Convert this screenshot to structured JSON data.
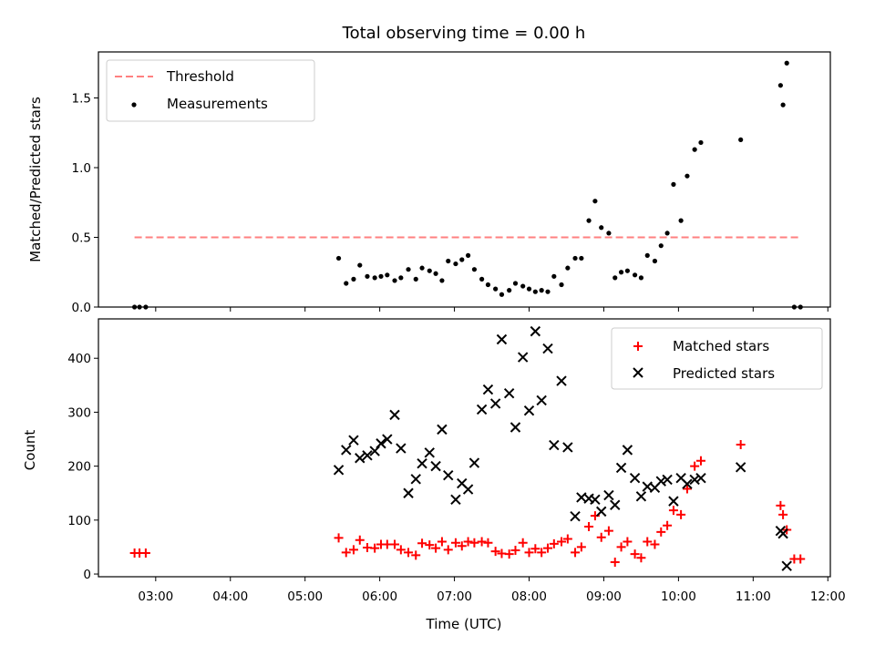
{
  "colors": {
    "threshold": "#ff8080",
    "measurements": "#000000",
    "matched": "#ff0000",
    "predicted": "#000000"
  },
  "chart_data": [
    {
      "type": "scatter",
      "title": "Total observing time = 0.00 h",
      "ylabel": "Matched/Predicted stars",
      "xlabel": "",
      "xlim": [
        "02:14",
        "12:02"
      ],
      "ylim": [
        0,
        1.83
      ],
      "grid": false,
      "legend_location": "top-left",
      "y_ticks": [
        "0.0",
        "0.5",
        "1.0",
        "1.5"
      ],
      "series": [
        {
          "name": "Threshold",
          "style": "dashed-line",
          "points": [
            [
              "02:43",
              0.5
            ],
            [
              "11:38",
              0.5
            ]
          ]
        },
        {
          "name": "Measurements",
          "style": "dots",
          "points": [
            [
              "02:43",
              0.0
            ],
            [
              "02:47",
              0.0
            ],
            [
              "02:52",
              0.0
            ],
            [
              "05:27",
              0.35
            ],
            [
              "05:33",
              0.17
            ],
            [
              "05:39",
              0.2
            ],
            [
              "05:44",
              0.3
            ],
            [
              "05:50",
              0.22
            ],
            [
              "05:56",
              0.21
            ],
            [
              "06:01",
              0.22
            ],
            [
              "06:06",
              0.23
            ],
            [
              "06:12",
              0.19
            ],
            [
              "06:17",
              0.21
            ],
            [
              "06:23",
              0.27
            ],
            [
              "06:29",
              0.2
            ],
            [
              "06:34",
              0.28
            ],
            [
              "06:40",
              0.26
            ],
            [
              "06:45",
              0.24
            ],
            [
              "06:50",
              0.19
            ],
            [
              "06:55",
              0.33
            ],
            [
              "07:01",
              0.31
            ],
            [
              "07:06",
              0.34
            ],
            [
              "07:11",
              0.37
            ],
            [
              "07:16",
              0.27
            ],
            [
              "07:22",
              0.2
            ],
            [
              "07:27",
              0.16
            ],
            [
              "07:33",
              0.13
            ],
            [
              "07:38",
              0.09
            ],
            [
              "07:44",
              0.12
            ],
            [
              "07:49",
              0.17
            ],
            [
              "07:55",
              0.15
            ],
            [
              "08:00",
              0.13
            ],
            [
              "08:05",
              0.11
            ],
            [
              "08:10",
              0.12
            ],
            [
              "08:15",
              0.11
            ],
            [
              "08:20",
              0.22
            ],
            [
              "08:26",
              0.16
            ],
            [
              "08:31",
              0.28
            ],
            [
              "08:37",
              0.35
            ],
            [
              "08:42",
              0.35
            ],
            [
              "08:48",
              0.62
            ],
            [
              "08:53",
              0.76
            ],
            [
              "08:58",
              0.57
            ],
            [
              "09:04",
              0.53
            ],
            [
              "09:09",
              0.21
            ],
            [
              "09:14",
              0.25
            ],
            [
              "09:19",
              0.26
            ],
            [
              "09:25",
              0.23
            ],
            [
              "09:30",
              0.21
            ],
            [
              "09:35",
              0.37
            ],
            [
              "09:41",
              0.33
            ],
            [
              "09:46",
              0.44
            ],
            [
              "09:51",
              0.53
            ],
            [
              "09:56",
              0.88
            ],
            [
              "10:02",
              0.62
            ],
            [
              "10:07",
              0.94
            ],
            [
              "10:13",
              1.13
            ],
            [
              "10:18",
              1.18
            ],
            [
              "10:50",
              1.2
            ],
            [
              "11:22",
              1.59
            ],
            [
              "11:24",
              1.45
            ],
            [
              "11:27",
              1.75
            ],
            [
              "11:33",
              0.0
            ],
            [
              "11:38",
              0.0
            ]
          ]
        }
      ]
    },
    {
      "type": "scatter",
      "title": "",
      "xlabel": "Time (UTC)",
      "ylabel": "Count",
      "xlim": [
        "02:14",
        "12:02"
      ],
      "ylim": [
        -5,
        473
      ],
      "grid": false,
      "legend_location": "top-right",
      "y_ticks": [
        "0",
        "100",
        "200",
        "300",
        "400"
      ],
      "x_ticks": [
        "03:00",
        "04:00",
        "05:00",
        "06:00",
        "07:00",
        "08:00",
        "09:00",
        "10:00",
        "11:00",
        "12:00"
      ],
      "series": [
        {
          "name": "Matched stars",
          "marker": "plus",
          "points": [
            [
              "02:43",
              39
            ],
            [
              "02:47",
              39
            ],
            [
              "02:52",
              39
            ],
            [
              "05:27",
              67
            ],
            [
              "05:33",
              40
            ],
            [
              "05:39",
              45
            ],
            [
              "05:44",
              63
            ],
            [
              "05:50",
              49
            ],
            [
              "05:56",
              48
            ],
            [
              "06:01",
              55
            ],
            [
              "06:06",
              55
            ],
            [
              "06:12",
              55
            ],
            [
              "06:17",
              45
            ],
            [
              "06:23",
              40
            ],
            [
              "06:29",
              35
            ],
            [
              "06:34",
              57
            ],
            [
              "06:40",
              54
            ],
            [
              "06:45",
              48
            ],
            [
              "06:50",
              60
            ],
            [
              "06:55",
              45
            ],
            [
              "07:01",
              58
            ],
            [
              "07:06",
              52
            ],
            [
              "07:11",
              60
            ],
            [
              "07:16",
              58
            ],
            [
              "07:22",
              60
            ],
            [
              "07:27",
              58
            ],
            [
              "07:33",
              42
            ],
            [
              "07:38",
              38
            ],
            [
              "07:44",
              37
            ],
            [
              "07:49",
              44
            ],
            [
              "07:55",
              58
            ],
            [
              "08:00",
              40
            ],
            [
              "08:05",
              47
            ],
            [
              "08:10",
              40
            ],
            [
              "08:15",
              48
            ],
            [
              "08:20",
              56
            ],
            [
              "08:26",
              60
            ],
            [
              "08:31",
              65
            ],
            [
              "08:37",
              40
            ],
            [
              "08:42",
              50
            ],
            [
              "08:48",
              88
            ],
            [
              "08:53",
              108
            ],
            [
              "08:58",
              68
            ],
            [
              "09:04",
              80
            ],
            [
              "09:09",
              22
            ],
            [
              "09:14",
              50
            ],
            [
              "09:19",
              60
            ],
            [
              "09:25",
              37
            ],
            [
              "09:30",
              30
            ],
            [
              "09:35",
              60
            ],
            [
              "09:41",
              55
            ],
            [
              "09:46",
              78
            ],
            [
              "09:51",
              90
            ],
            [
              "09:56",
              118
            ],
            [
              "10:02",
              110
            ],
            [
              "10:07",
              158
            ],
            [
              "10:13",
              200
            ],
            [
              "10:18",
              210
            ],
            [
              "10:50",
              240
            ],
            [
              "11:22",
              127
            ],
            [
              "11:24",
              110
            ],
            [
              "11:27",
              82
            ],
            [
              "11:33",
              28
            ],
            [
              "11:38",
              28
            ]
          ]
        },
        {
          "name": "Predicted stars",
          "marker": "x",
          "points": [
            [
              "05:27",
              193
            ],
            [
              "05:33",
              230
            ],
            [
              "05:39",
              248
            ],
            [
              "05:44",
              215
            ],
            [
              "05:50",
              220
            ],
            [
              "05:56",
              228
            ],
            [
              "06:01",
              242
            ],
            [
              "06:06",
              250
            ],
            [
              "06:12",
              295
            ],
            [
              "06:17",
              233
            ],
            [
              "06:23",
              150
            ],
            [
              "06:29",
              176
            ],
            [
              "06:34",
              205
            ],
            [
              "06:40",
              225
            ],
            [
              "06:45",
              200
            ],
            [
              "06:50",
              268
            ],
            [
              "06:55",
              183
            ],
            [
              "07:01",
              138
            ],
            [
              "07:06",
              168
            ],
            [
              "07:11",
              157
            ],
            [
              "07:16",
              206
            ],
            [
              "07:22",
              305
            ],
            [
              "07:27",
              342
            ],
            [
              "07:33",
              316
            ],
            [
              "07:38",
              435
            ],
            [
              "07:44",
              335
            ],
            [
              "07:49",
              272
            ],
            [
              "07:55",
              402
            ],
            [
              "08:00",
              303
            ],
            [
              "08:05",
              450
            ],
            [
              "08:10",
              322
            ],
            [
              "08:15",
              418
            ],
            [
              "08:20",
              239
            ],
            [
              "08:26",
              358
            ],
            [
              "08:31",
              235
            ],
            [
              "08:37",
              107
            ],
            [
              "08:42",
              142
            ],
            [
              "08:48",
              140
            ],
            [
              "08:53",
              138
            ],
            [
              "08:58",
              116
            ],
            [
              "09:04",
              146
            ],
            [
              "09:09",
              128
            ],
            [
              "09:14",
              197
            ],
            [
              "09:19",
              230
            ],
            [
              "09:25",
              178
            ],
            [
              "09:30",
              144
            ],
            [
              "09:35",
              162
            ],
            [
              "09:41",
              160
            ],
            [
              "09:46",
              172
            ],
            [
              "09:51",
              175
            ],
            [
              "09:56",
              135
            ],
            [
              "10:02",
              178
            ],
            [
              "10:07",
              167
            ],
            [
              "10:13",
              175
            ],
            [
              "10:18",
              178
            ],
            [
              "10:50",
              198
            ],
            [
              "11:22",
              80
            ],
            [
              "11:24",
              75
            ],
            [
              "11:27",
              15
            ]
          ]
        }
      ]
    }
  ]
}
